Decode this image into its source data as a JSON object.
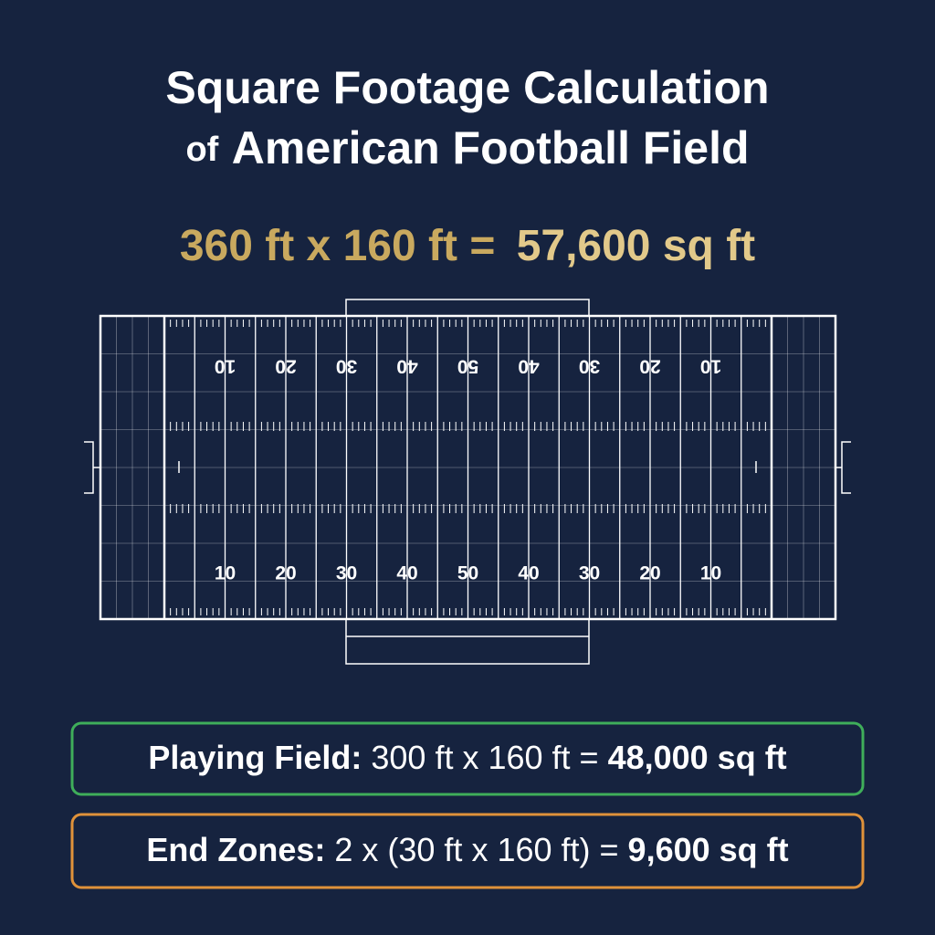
{
  "title": {
    "line1": "Square Footage Calculation",
    "line2_prefix": "of",
    "line2": "American Football Field"
  },
  "formula": {
    "left": "360 ft x 160 ft =",
    "result": "57,600 sq ft"
  },
  "field": {
    "top_numbers": [
      "10",
      "20",
      "30",
      "40",
      "50",
      "40",
      "30",
      "20",
      "10"
    ],
    "bottom_numbers": [
      "10",
      "20",
      "30",
      "40",
      "50",
      "40",
      "30",
      "20",
      "10"
    ]
  },
  "boxes": [
    {
      "label": "Playing Field:",
      "expression": "300 ft x 160 ft =",
      "result": "48,000 sq ft"
    },
    {
      "label": "End Zones:",
      "expression": "2 x (30 ft x 160 ft) =",
      "result": "9,600 sq ft"
    }
  ]
}
